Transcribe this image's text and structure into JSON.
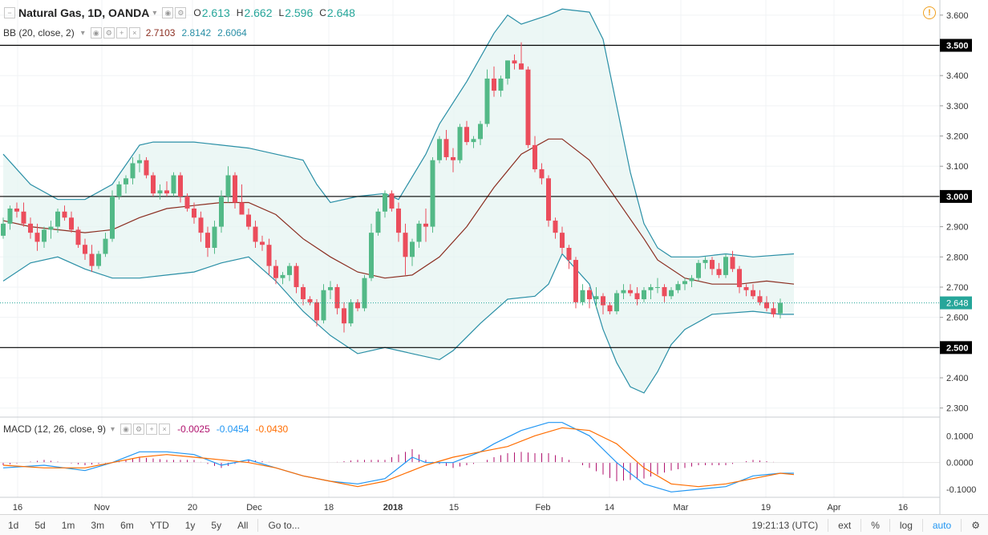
{
  "header": {
    "symbol": "Natural Gas, 1D, OANDA",
    "o_label": "O",
    "o_value": "2.613",
    "h_label": "H",
    "h_value": "2.662",
    "l_label": "L",
    "l_value": "2.596",
    "c_label": "C",
    "c_value": "2.648"
  },
  "bb_legend": {
    "label": "BB (20, close, 2)",
    "v1": "2.7103",
    "v2": "2.8142",
    "v3": "2.6064"
  },
  "macd_legend": {
    "label": "MACD (12, 26, close, 9)",
    "v1": "-0.0025",
    "v2": "-0.0454",
    "v3": "-0.0430"
  },
  "colors": {
    "up": "#53b987",
    "down": "#eb4d5c",
    "bb": "#2a8fa6",
    "basis": "#8b2e21",
    "macd": "#2196f3",
    "signal": "#ff6d00",
    "hist": "#b0126e"
  },
  "price_axis": {
    "ticks": [
      "3.600",
      "3.500",
      "3.400",
      "3.300",
      "3.200",
      "3.100",
      "3.000",
      "2.900",
      "2.800",
      "2.700",
      "2.600",
      "2.500",
      "2.400",
      "2.300"
    ],
    "current": "2.648"
  },
  "macd_axis": {
    "ticks": [
      "0.1000",
      "0.0000",
      "-0.1000"
    ]
  },
  "time_axis": [
    "16",
    "Nov",
    "20",
    "Dec",
    "18",
    "2018",
    "15",
    "Feb",
    "14",
    "Mar",
    "19",
    "Apr",
    "16"
  ],
  "levels": [
    3.5,
    3.0,
    2.5
  ],
  "bottom_bar": {
    "ranges": [
      "1d",
      "5d",
      "1m",
      "3m",
      "6m",
      "YTD",
      "1y",
      "5y",
      "All"
    ],
    "goto": "Go to...",
    "time": "19:21:13 (UTC)",
    "ext": "ext",
    "percent": "%",
    "log": "log",
    "auto": "auto"
  },
  "chart_data": {
    "type": "candlestick",
    "ylim": [
      2.27,
      3.65
    ],
    "candles": [
      [
        2.87,
        2.93,
        2.86,
        2.91
      ],
      [
        2.91,
        2.97,
        2.89,
        2.96
      ],
      [
        2.96,
        2.98,
        2.93,
        2.95
      ],
      [
        2.95,
        2.98,
        2.9,
        2.91
      ],
      [
        2.91,
        2.93,
        2.86,
        2.88
      ],
      [
        2.88,
        2.91,
        2.82,
        2.85
      ],
      [
        2.85,
        2.9,
        2.83,
        2.89
      ],
      [
        2.89,
        2.92,
        2.86,
        2.9
      ],
      [
        2.9,
        2.96,
        2.88,
        2.95
      ],
      [
        2.95,
        2.97,
        2.92,
        2.93
      ],
      [
        2.93,
        2.95,
        2.88,
        2.89
      ],
      [
        2.89,
        2.9,
        2.83,
        2.84
      ],
      [
        2.84,
        2.86,
        2.79,
        2.81
      ],
      [
        2.81,
        2.84,
        2.75,
        2.77
      ],
      [
        2.77,
        2.82,
        2.76,
        2.81
      ],
      [
        2.81,
        2.88,
        2.8,
        2.86
      ],
      [
        2.86,
        3.02,
        2.85,
        3.0
      ],
      [
        3.0,
        3.05,
        2.99,
        3.04
      ],
      [
        3.04,
        3.07,
        3.01,
        3.06
      ],
      [
        3.06,
        3.13,
        3.04,
        3.11
      ],
      [
        3.11,
        3.14,
        3.08,
        3.12
      ],
      [
        3.12,
        3.13,
        3.06,
        3.07
      ],
      [
        3.07,
        3.08,
        3.0,
        3.01
      ],
      [
        3.01,
        3.04,
        2.99,
        3.02
      ],
      [
        3.02,
        3.05,
        3.0,
        3.01
      ],
      [
        3.01,
        3.08,
        3.0,
        3.07
      ],
      [
        3.07,
        3.08,
        2.98,
        3.0
      ],
      [
        3.0,
        3.01,
        2.95,
        2.96
      ],
      [
        2.96,
        2.98,
        2.91,
        2.93
      ],
      [
        2.93,
        2.95,
        2.85,
        2.88
      ],
      [
        2.88,
        2.9,
        2.8,
        2.83
      ],
      [
        2.83,
        2.92,
        2.81,
        2.9
      ],
      [
        2.9,
        3.02,
        2.88,
        3.0
      ],
      [
        3.0,
        3.1,
        2.98,
        3.07
      ],
      [
        3.07,
        3.08,
        2.96,
        2.98
      ],
      [
        2.98,
        3.04,
        2.95,
        2.94
      ],
      [
        2.94,
        2.96,
        2.89,
        2.9
      ],
      [
        2.9,
        2.92,
        2.83,
        2.85
      ],
      [
        2.85,
        2.87,
        2.82,
        2.84
      ],
      [
        2.84,
        2.86,
        2.74,
        2.77
      ],
      [
        2.77,
        2.79,
        2.71,
        2.73
      ],
      [
        2.73,
        2.75,
        2.71,
        2.74
      ],
      [
        2.74,
        2.78,
        2.72,
        2.77
      ],
      [
        2.77,
        2.78,
        2.68,
        2.7
      ],
      [
        2.7,
        2.71,
        2.64,
        2.66
      ],
      [
        2.66,
        2.67,
        2.64,
        2.65
      ],
      [
        2.65,
        2.66,
        2.57,
        2.59
      ],
      [
        2.59,
        2.71,
        2.58,
        2.69
      ],
      [
        2.69,
        2.72,
        2.66,
        2.7
      ],
      [
        2.7,
        2.71,
        2.61,
        2.63
      ],
      [
        2.63,
        2.65,
        2.55,
        2.58
      ],
      [
        2.58,
        2.66,
        2.57,
        2.65
      ],
      [
        2.65,
        2.66,
        2.62,
        2.63
      ],
      [
        2.63,
        2.74,
        2.62,
        2.73
      ],
      [
        2.73,
        2.91,
        2.72,
        2.88
      ],
      [
        2.88,
        2.96,
        2.87,
        2.95
      ],
      [
        2.95,
        3.02,
        2.93,
        3.01
      ],
      [
        3.01,
        3.02,
        2.95,
        2.96
      ],
      [
        2.96,
        2.98,
        2.85,
        2.88
      ],
      [
        2.88,
        2.91,
        2.74,
        2.8
      ],
      [
        2.8,
        2.86,
        2.77,
        2.85
      ],
      [
        2.85,
        2.92,
        2.83,
        2.91
      ],
      [
        2.91,
        2.96,
        2.85,
        2.9
      ],
      [
        2.9,
        3.13,
        2.88,
        3.12
      ],
      [
        3.12,
        3.2,
        3.11,
        3.19
      ],
      [
        3.19,
        3.22,
        3.12,
        3.13
      ],
      [
        3.13,
        3.16,
        3.08,
        3.12
      ],
      [
        3.12,
        3.24,
        3.11,
        3.23
      ],
      [
        3.23,
        3.25,
        3.17,
        3.18
      ],
      [
        3.18,
        3.2,
        3.16,
        3.19
      ],
      [
        3.19,
        3.25,
        3.17,
        3.24
      ],
      [
        3.24,
        3.42,
        3.23,
        3.39
      ],
      [
        3.39,
        3.43,
        3.33,
        3.35
      ],
      [
        3.35,
        3.4,
        3.33,
        3.39
      ],
      [
        3.39,
        3.45,
        3.37,
        3.45
      ],
      [
        3.45,
        3.47,
        3.42,
        3.44
      ],
      [
        3.44,
        3.51,
        3.42,
        3.42
      ],
      [
        3.42,
        3.43,
        3.16,
        3.17
      ],
      [
        3.17,
        3.2,
        3.08,
        3.09
      ],
      [
        3.09,
        3.11,
        3.04,
        3.06
      ],
      [
        3.06,
        3.07,
        2.9,
        2.92
      ],
      [
        2.92,
        2.93,
        2.86,
        2.88
      ],
      [
        2.88,
        2.9,
        2.81,
        2.83
      ],
      [
        2.83,
        2.84,
        2.76,
        2.79
      ],
      [
        2.79,
        2.8,
        2.63,
        2.65
      ],
      [
        2.65,
        2.71,
        2.64,
        2.69
      ],
      [
        2.69,
        2.7,
        2.63,
        2.66
      ],
      [
        2.66,
        2.7,
        2.63,
        2.67
      ],
      [
        2.67,
        2.68,
        2.61,
        2.64
      ],
      [
        2.64,
        2.65,
        2.61,
        2.62
      ],
      [
        2.62,
        2.69,
        2.61,
        2.68
      ],
      [
        2.68,
        2.71,
        2.66,
        2.69
      ],
      [
        2.69,
        2.71,
        2.67,
        2.68
      ],
      [
        2.68,
        2.7,
        2.64,
        2.66
      ],
      [
        2.66,
        2.7,
        2.65,
        2.69
      ],
      [
        2.69,
        2.71,
        2.66,
        2.7
      ],
      [
        2.7,
        2.73,
        2.68,
        2.7
      ],
      [
        2.7,
        2.71,
        2.65,
        2.67
      ],
      [
        2.67,
        2.7,
        2.66,
        2.69
      ],
      [
        2.69,
        2.72,
        2.68,
        2.71
      ],
      [
        2.71,
        2.73,
        2.69,
        2.72
      ],
      [
        2.72,
        2.74,
        2.7,
        2.73
      ],
      [
        2.73,
        2.79,
        2.72,
        2.78
      ],
      [
        2.78,
        2.8,
        2.76,
        2.79
      ],
      [
        2.79,
        2.8,
        2.74,
        2.76
      ],
      [
        2.76,
        2.78,
        2.73,
        2.74
      ],
      [
        2.74,
        2.81,
        2.73,
        2.8
      ],
      [
        2.8,
        2.82,
        2.75,
        2.76
      ],
      [
        2.76,
        2.77,
        2.68,
        2.7
      ],
      [
        2.7,
        2.71,
        2.67,
        2.69
      ],
      [
        2.69,
        2.71,
        2.66,
        2.67
      ],
      [
        2.67,
        2.69,
        2.64,
        2.65
      ],
      [
        2.65,
        2.67,
        2.62,
        2.63
      ],
      [
        2.63,
        2.65,
        2.6,
        2.61
      ],
      [
        2.613,
        2.662,
        2.596,
        2.648
      ]
    ],
    "bb_upper": [
      [
        0,
        3.14
      ],
      [
        4,
        3.04
      ],
      [
        8,
        2.99
      ],
      [
        12,
        2.99
      ],
      [
        16,
        3.04
      ],
      [
        20,
        3.17
      ],
      [
        22,
        3.18
      ],
      [
        28,
        3.18
      ],
      [
        32,
        3.17
      ],
      [
        36,
        3.16
      ],
      [
        40,
        3.14
      ],
      [
        44,
        3.12
      ],
      [
        46,
        3.04
      ],
      [
        48,
        2.98
      ],
      [
        52,
        3.0
      ],
      [
        56,
        3.01
      ],
      [
        58,
        2.99
      ],
      [
        62,
        3.14
      ],
      [
        64,
        3.24
      ],
      [
        68,
        3.38
      ],
      [
        72,
        3.54
      ],
      [
        74,
        3.6
      ],
      [
        76,
        3.57
      ],
      [
        80,
        3.6
      ],
      [
        82,
        3.62
      ],
      [
        86,
        3.61
      ],
      [
        88,
        3.52
      ],
      [
        90,
        3.3
      ],
      [
        92,
        3.08
      ],
      [
        94,
        2.91
      ],
      [
        96,
        2.83
      ],
      [
        98,
        2.8
      ],
      [
        102,
        2.8
      ],
      [
        106,
        2.81
      ],
      [
        110,
        2.8
      ],
      [
        116,
        2.81
      ]
    ],
    "bb_basis": [
      [
        0,
        2.92
      ],
      [
        4,
        2.9
      ],
      [
        8,
        2.89
      ],
      [
        12,
        2.88
      ],
      [
        16,
        2.89
      ],
      [
        20,
        2.93
      ],
      [
        24,
        2.96
      ],
      [
        28,
        2.97
      ],
      [
        32,
        2.98
      ],
      [
        36,
        2.98
      ],
      [
        40,
        2.94
      ],
      [
        44,
        2.86
      ],
      [
        48,
        2.8
      ],
      [
        52,
        2.75
      ],
      [
        56,
        2.73
      ],
      [
        60,
        2.74
      ],
      [
        64,
        2.8
      ],
      [
        68,
        2.9
      ],
      [
        72,
        3.03
      ],
      [
        76,
        3.14
      ],
      [
        80,
        3.19
      ],
      [
        82,
        3.19
      ],
      [
        86,
        3.12
      ],
      [
        90,
        2.99
      ],
      [
        94,
        2.86
      ],
      [
        96,
        2.79
      ],
      [
        100,
        2.73
      ],
      [
        104,
        2.71
      ],
      [
        108,
        2.71
      ],
      [
        112,
        2.72
      ],
      [
        116,
        2.71
      ]
    ],
    "bb_lower": [
      [
        0,
        2.72
      ],
      [
        4,
        2.78
      ],
      [
        8,
        2.8
      ],
      [
        12,
        2.76
      ],
      [
        16,
        2.73
      ],
      [
        20,
        2.73
      ],
      [
        24,
        2.74
      ],
      [
        28,
        2.75
      ],
      [
        32,
        2.78
      ],
      [
        36,
        2.8
      ],
      [
        40,
        2.72
      ],
      [
        44,
        2.62
      ],
      [
        48,
        2.54
      ],
      [
        52,
        2.48
      ],
      [
        56,
        2.5
      ],
      [
        60,
        2.48
      ],
      [
        64,
        2.46
      ],
      [
        66,
        2.49
      ],
      [
        70,
        2.58
      ],
      [
        74,
        2.66
      ],
      [
        78,
        2.67
      ],
      [
        80,
        2.71
      ],
      [
        82,
        2.81
      ],
      [
        86,
        2.71
      ],
      [
        88,
        2.56
      ],
      [
        90,
        2.45
      ],
      [
        92,
        2.37
      ],
      [
        94,
        2.35
      ],
      [
        96,
        2.42
      ],
      [
        98,
        2.51
      ],
      [
        100,
        2.56
      ],
      [
        104,
        2.61
      ],
      [
        110,
        2.62
      ],
      [
        114,
        2.61
      ],
      [
        116,
        2.61
      ]
    ],
    "macd": [
      [
        0,
        -0.02
      ],
      [
        6,
        -0.01
      ],
      [
        12,
        -0.03
      ],
      [
        16,
        0.0
      ],
      [
        20,
        0.04
      ],
      [
        24,
        0.04
      ],
      [
        28,
        0.03
      ],
      [
        32,
        -0.01
      ],
      [
        36,
        0.01
      ],
      [
        40,
        -0.02
      ],
      [
        44,
        -0.05
      ],
      [
        48,
        -0.07
      ],
      [
        52,
        -0.08
      ],
      [
        56,
        -0.06
      ],
      [
        60,
        0.02
      ],
      [
        62,
        0.0
      ],
      [
        66,
        0.0
      ],
      [
        70,
        0.04
      ],
      [
        72,
        0.07
      ],
      [
        76,
        0.12
      ],
      [
        80,
        0.15
      ],
      [
        82,
        0.15
      ],
      [
        86,
        0.1
      ],
      [
        90,
        0.0
      ],
      [
        94,
        -0.08
      ],
      [
        98,
        -0.11
      ],
      [
        102,
        -0.1
      ],
      [
        106,
        -0.09
      ],
      [
        110,
        -0.05
      ],
      [
        114,
        -0.04
      ],
      [
        116,
        -0.04
      ]
    ],
    "signal": [
      [
        0,
        -0.01
      ],
      [
        6,
        -0.02
      ],
      [
        12,
        -0.02
      ],
      [
        16,
        0.0
      ],
      [
        20,
        0.02
      ],
      [
        24,
        0.03
      ],
      [
        28,
        0.02
      ],
      [
        32,
        0.01
      ],
      [
        36,
        0.0
      ],
      [
        40,
        -0.02
      ],
      [
        44,
        -0.05
      ],
      [
        48,
        -0.07
      ],
      [
        52,
        -0.09
      ],
      [
        56,
        -0.07
      ],
      [
        60,
        -0.03
      ],
      [
        62,
        -0.01
      ],
      [
        66,
        0.02
      ],
      [
        70,
        0.04
      ],
      [
        74,
        0.06
      ],
      [
        78,
        0.1
      ],
      [
        82,
        0.13
      ],
      [
        86,
        0.12
      ],
      [
        90,
        0.07
      ],
      [
        94,
        -0.02
      ],
      [
        98,
        -0.08
      ],
      [
        102,
        -0.09
      ],
      [
        106,
        -0.08
      ],
      [
        110,
        -0.06
      ],
      [
        114,
        -0.04
      ],
      [
        116,
        -0.045
      ]
    ]
  }
}
